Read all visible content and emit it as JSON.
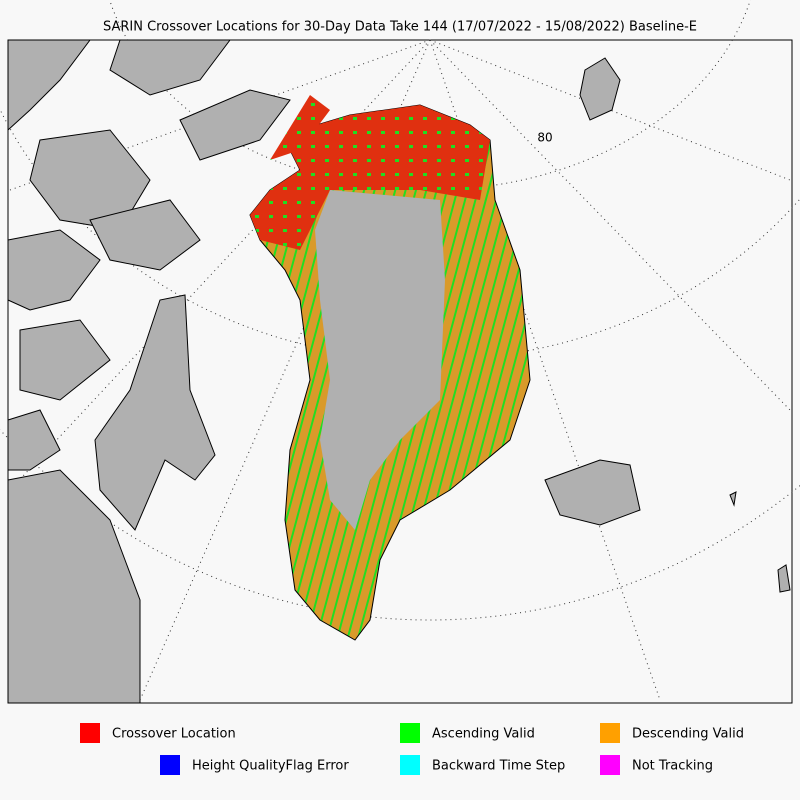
{
  "title": "SARIN Crossover Locations for 30-Day Data Take 144 (17/07/2022 - 15/08/2022) Baseline-E",
  "map": {
    "graticule_label": "80"
  },
  "legend": [
    {
      "label": "Crossover Location",
      "color": "#ff0000"
    },
    {
      "label": "Ascending Valid",
      "color": "#00ff00"
    },
    {
      "label": "Descending Valid",
      "color": "#ffa000"
    },
    {
      "label": "Height QualityFlag Error",
      "color": "#0000ff"
    },
    {
      "label": "Backward Time Step",
      "color": "#00ffff"
    },
    {
      "label": "Not Tracking",
      "color": "#ff00ff"
    }
  ]
}
